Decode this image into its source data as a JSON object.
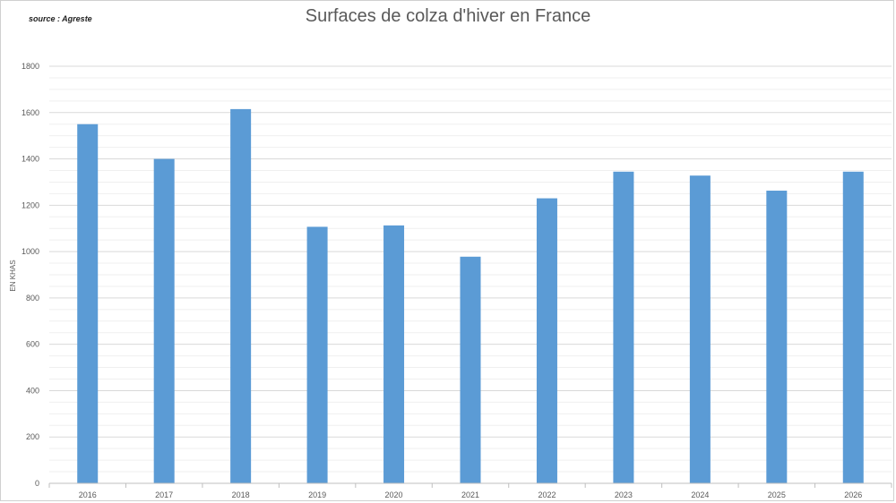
{
  "source_note": "source : Agreste",
  "chart_data": {
    "type": "bar",
    "title": "Surfaces de colza d'hiver en France",
    "xlabel": "",
    "ylabel": "EN KHAS",
    "categories": [
      "2016",
      "2017",
      "2018",
      "2019",
      "2020",
      "2021",
      "2022",
      "2023",
      "2024",
      "2025",
      "2026"
    ],
    "values": [
      1550,
      1400,
      1615,
      1107,
      1113,
      978,
      1230,
      1345,
      1328,
      1263,
      1345
    ],
    "ylim": [
      0,
      1800
    ],
    "yticks": [
      0,
      200,
      400,
      600,
      800,
      1000,
      1200,
      1400,
      1600,
      1800
    ],
    "minor_grid_step": 50,
    "grid": true,
    "legend": "none",
    "bar_color": "#5b9bd5",
    "grid_color": "#d9d9d9",
    "minor_grid_color": "#efefef"
  }
}
